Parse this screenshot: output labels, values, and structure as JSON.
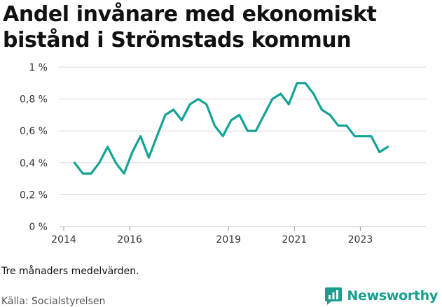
{
  "title": "Andel invånare med ekonomiskt bistånd i Strömstads kommun",
  "note": "Tre månaders medelvärden.",
  "source": "Källa: Socialstyrelsen",
  "brand": "Newsworthy",
  "colors": {
    "line": "#13a394",
    "grid": "#d9d9d9",
    "brand": "#1a9e8e"
  },
  "chart_data": {
    "type": "line",
    "title": "Andel invånare med ekonomiskt bistånd i Strömstads kommun",
    "xlabel": "",
    "ylabel": "",
    "ylim": [
      0,
      1
    ],
    "xlim": [
      2014,
      2024.5
    ],
    "y_ticks": [
      0,
      0.2,
      0.4,
      0.6,
      0.8,
      1
    ],
    "y_tick_labels": [
      "0 %",
      "0,2 %",
      "0,4 %",
      "0,6 %",
      "0,8 %",
      "1 %"
    ],
    "x_ticks": [
      2014,
      2016,
      2019,
      2021,
      2023
    ],
    "x_tick_labels": [
      "2014",
      "2016",
      "2019",
      "2021",
      "2023"
    ],
    "grid": true,
    "series": [
      {
        "x": [
          2014.33,
          2014.58,
          2014.83,
          2015.08,
          2015.33,
          2015.58,
          2015.83,
          2016.08,
          2016.33,
          2016.58,
          2016.83,
          2017.08,
          2017.33,
          2017.58,
          2017.83,
          2018.08,
          2018.33,
          2018.58,
          2018.83,
          2019.08,
          2019.33,
          2019.58,
          2019.83,
          2020.08,
          2020.33,
          2020.58,
          2020.83,
          2021.08,
          2021.33,
          2021.58,
          2021.83,
          2022.08,
          2022.33,
          2022.58,
          2022.83,
          2023.08,
          2023.33,
          2023.58,
          2023.83
        ],
        "values": [
          0.4,
          0.333,
          0.333,
          0.4,
          0.5,
          0.4,
          0.333,
          0.467,
          0.567,
          0.433,
          0.567,
          0.7,
          0.733,
          0.667,
          0.767,
          0.8,
          0.767,
          0.633,
          0.567,
          0.667,
          0.7,
          0.6,
          0.6,
          0.7,
          0.8,
          0.833,
          0.767,
          0.9,
          0.9,
          0.833,
          0.733,
          0.7,
          0.633,
          0.633,
          0.567,
          0.567,
          0.567,
          0.467,
          0.5
        ]
      }
    ]
  }
}
